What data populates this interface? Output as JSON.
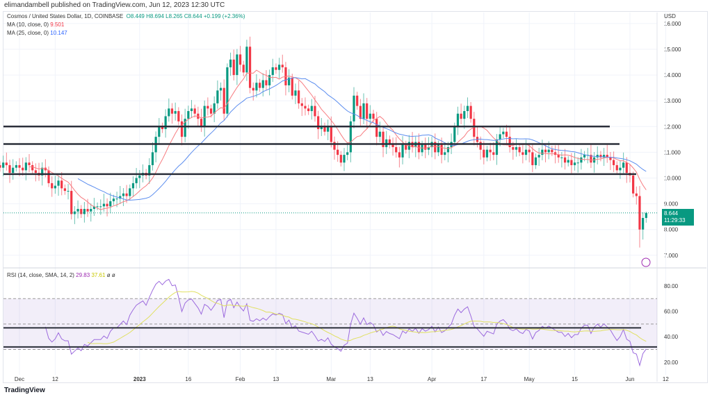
{
  "publisher": "elimandambell published on TradingView.com, Jun 12, 2023 12:30 UTC",
  "legend": {
    "symbol": "Cosmos / United States Dollar, 1D, COINBASE",
    "o": "O8.449",
    "h": "H8.694",
    "l": "L8.265",
    "c": "C8.644",
    "chg": "+0.199 (+2.36%)",
    "ma10_label": "MA (10, close, 0)",
    "ma10_value": "9.501",
    "ma25_label": "MA (25, close, 0)",
    "ma25_value": "10.147",
    "rsi_label": "RSI (14, close, SMA, 14, 2)",
    "rsi_value": "29.83",
    "rsi_ma_value": "37.61",
    "rsi_extra": "ø ø"
  },
  "price_badge": {
    "price": "8.644",
    "countdown": "11:29:33"
  },
  "logo": "TradingView",
  "colors": {
    "up": "#089981",
    "down": "#f23645",
    "ma10": "#f77c80",
    "ma25": "#5b8def",
    "rsi": "#9c6ade",
    "rsi_ma": "#e0e060",
    "levels": "#2a2e39"
  },
  "chart_data": [
    {
      "type": "candlestick",
      "title": "Cosmos / United States Dollar, 1D, COINBASE",
      "currency": "USD",
      "ylim": [
        7,
        16
      ],
      "yticks": [
        "7.000",
        "8.000",
        "9.000",
        "10.000",
        "11.000",
        "12.000",
        "13.000",
        "14.000",
        "15.000",
        "16.000"
      ],
      "xticks": [
        "Dec",
        "12",
        "2023",
        "16",
        "Feb",
        "13",
        "Mar",
        "13",
        "Apr",
        "17",
        "May",
        "15",
        "Jun",
        "12"
      ],
      "start_date": "2022-11-25",
      "closes": [
        10.4,
        10.6,
        10.5,
        10.2,
        10.4,
        10.5,
        10.4,
        10.3,
        10.6,
        10.5,
        10.3,
        10.2,
        10.1,
        10.4,
        10.3,
        9.8,
        9.6,
        9.7,
        9.9,
        9.6,
        9.5,
        9.5,
        8.6,
        8.7,
        8.8,
        8.6,
        8.8,
        8.7,
        8.8,
        8.9,
        8.9,
        8.9,
        9.0,
        8.9,
        9.1,
        9.2,
        9.2,
        9.3,
        9.4,
        9.3,
        9.6,
        9.8,
        10.0,
        10.1,
        10.2,
        10.1,
        10.5,
        11.0,
        11.6,
        12.0,
        11.9,
        12.4,
        12.7,
        12.5,
        12.6,
        12.2,
        11.6,
        12.3,
        12.6,
        12.7,
        12.5,
        12.3,
        12.0,
        12.8,
        12.7,
        12.5,
        12.9,
        13.4,
        13.5,
        12.5,
        14.3,
        14.6,
        14.0,
        14.8,
        14.4,
        14.1,
        15.1,
        13.5,
        13.4,
        13.7,
        13.5,
        13.8,
        13.6,
        14.0,
        14.3,
        14.2,
        14.4,
        14.3,
        13.6,
        13.9,
        13.2,
        13.4,
        12.9,
        12.8,
        12.7,
        12.6,
        12.8,
        12.4,
        11.9,
        12.0,
        11.8,
        12.0,
        11.4,
        11.1,
        10.9,
        10.6,
        10.9,
        11.0,
        12.2,
        13.2,
        12.8,
        12.3,
        12.9,
        12.3,
        12.5,
        12.3,
        11.6,
        11.8,
        11.2,
        11.5,
        11.3,
        11.2,
        11.0,
        10.8,
        11.3,
        11.1,
        11.4,
        11.2,
        11.4,
        11.0,
        11.3,
        11.1,
        11.2,
        11.4,
        11.0,
        11.3,
        10.9,
        11.0,
        11.2,
        11.4,
        12.0,
        12.5,
        12.3,
        12.6,
        12.8,
        12.3,
        11.6,
        11.4,
        11.1,
        10.8,
        11.1,
        11.0,
        10.9,
        11.5,
        11.7,
        11.8,
        11.6,
        11.2,
        11.1,
        11.2,
        11.0,
        10.9,
        11.1,
        11.0,
        10.5,
        10.8,
        10.9,
        11.1,
        11.0,
        11.1,
        11.0,
        10.9,
        10.8,
        10.8,
        10.6,
        10.7,
        10.5,
        10.6,
        10.6,
        10.8,
        10.9,
        10.9,
        10.6,
        10.8,
        10.9,
        10.8,
        10.9,
        10.8,
        10.7,
        10.5,
        10.3,
        10.4,
        10.6,
        10.2,
        10.1,
        9.4,
        9.3,
        8.0,
        8.45,
        8.644
      ],
      "last_open": 8.449,
      "last_high": 8.694,
      "last_low": 8.265,
      "overlays": [
        "MA 10",
        "MA 25"
      ],
      "horizontal_levels": [
        12.0,
        11.32,
        10.15
      ]
    },
    {
      "type": "line",
      "title": "RSI (14, close, SMA, 14, 2)",
      "ylim": [
        15,
        90
      ],
      "yticks": [
        "20.00",
        "40.00",
        "60.00",
        "80.00"
      ],
      "band": [
        30,
        70
      ],
      "midline": 50,
      "horizontal_levels": [
        47,
        32
      ]
    }
  ]
}
